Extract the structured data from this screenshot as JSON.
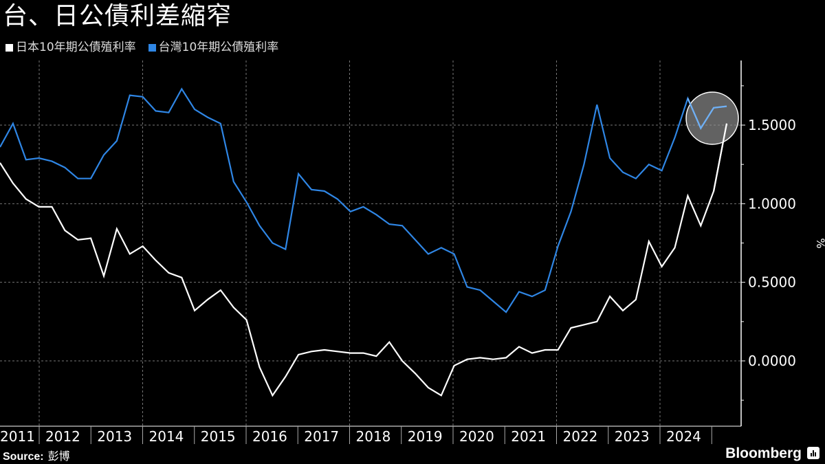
{
  "title": "台、日公債利差縮窄",
  "legend": [
    {
      "label": "日本10年期公債殖利率",
      "color": "#ffffff"
    },
    {
      "label": "台灣10年期公債殖利率",
      "color": "#2f86e5"
    }
  ],
  "source": {
    "label": "Source:",
    "value": "彭博"
  },
  "brand": "Bloomberg",
  "y_axis_unit": "%",
  "chart_data": {
    "type": "line",
    "title": "台、日公債利差縮窄",
    "xlabel": "",
    "ylabel": "%",
    "ylim": [
      -0.42,
      1.92
    ],
    "yticks": [
      "0.0000",
      "0.5000",
      "1.0000",
      "1.5000"
    ],
    "ytick_values": [
      0,
      0.5,
      1.0,
      1.5
    ],
    "x_tick_labels": [
      "2011",
      "2012",
      "2013",
      "2014",
      "2015",
      "2016",
      "2017",
      "2018",
      "2019",
      "2020",
      "2021",
      "2022",
      "2023",
      "2024"
    ],
    "x_start": 2010.75,
    "x_step": 0.25,
    "grid": true,
    "legend_position": "top-left",
    "series": [
      {
        "name": "日本10年期公債殖利率",
        "color": "#ffffff",
        "values": [
          1.26,
          1.13,
          1.03,
          0.98,
          0.98,
          0.83,
          0.77,
          0.78,
          0.54,
          0.84,
          0.68,
          0.73,
          0.64,
          0.56,
          0.53,
          0.32,
          0.39,
          0.45,
          0.34,
          0.26,
          -0.04,
          -0.22,
          -0.1,
          0.04,
          0.06,
          0.07,
          0.06,
          0.05,
          0.05,
          0.03,
          0.12,
          0.0,
          -0.08,
          -0.17,
          -0.22,
          -0.03,
          0.01,
          0.02,
          0.01,
          0.02,
          0.09,
          0.05,
          0.07,
          0.07,
          0.21,
          0.23,
          0.25,
          0.41,
          0.32,
          0.39,
          0.76,
          0.6,
          0.72,
          1.05,
          0.86,
          1.08,
          1.51
        ]
      },
      {
        "name": "台灣10年期公債殖利率",
        "color": "#2f86e5",
        "values": [
          1.36,
          1.51,
          1.28,
          1.29,
          1.27,
          1.23,
          1.16,
          1.16,
          1.31,
          1.4,
          1.69,
          1.68,
          1.59,
          1.58,
          1.73,
          1.6,
          1.55,
          1.51,
          1.14,
          1.01,
          0.86,
          0.75,
          0.71,
          1.19,
          1.09,
          1.08,
          1.03,
          0.95,
          0.98,
          0.93,
          0.87,
          0.86,
          0.77,
          0.68,
          0.72,
          0.68,
          0.47,
          0.45,
          0.38,
          0.31,
          0.44,
          0.41,
          0.45,
          0.73,
          0.95,
          1.25,
          1.63,
          1.29,
          1.2,
          1.16,
          1.25,
          1.21,
          1.42,
          1.67,
          1.48,
          1.61,
          1.62
        ]
      }
    ],
    "annotation": {
      "type": "circle",
      "note": "highlights latest readings"
    }
  }
}
